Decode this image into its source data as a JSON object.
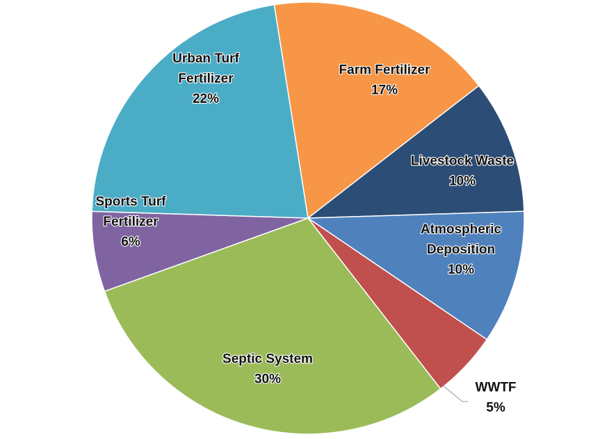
{
  "chart_data": {
    "type": "pie",
    "slices": [
      {
        "label_lines": [
          "Farm Fertilizer"
        ],
        "value": 17,
        "value_label": "17%",
        "color": "#F79646"
      },
      {
        "label_lines": [
          "Livestock Waste"
        ],
        "value": 10,
        "value_label": "10%",
        "color": "#2C4D75"
      },
      {
        "label_lines": [
          "Atmospheric",
          "Deposition"
        ],
        "value": 10,
        "value_label": "10%",
        "color": "#4F81BD"
      },
      {
        "label_lines": [
          "WWTF"
        ],
        "value": 5,
        "value_label": "5%",
        "color": "#C0504D"
      },
      {
        "label_lines": [
          "Septic System"
        ],
        "value": 30,
        "value_label": "30%",
        "color": "#9BBB59"
      },
      {
        "label_lines": [
          "Sports Turf",
          "Fertilizer"
        ],
        "value": 6,
        "value_label": "6%",
        "color": "#8064A2"
      },
      {
        "label_lines": [
          "Urban Turf",
          "Fertilizer"
        ],
        "value": 22,
        "value_label": "22%",
        "color": "#4BACC6"
      }
    ],
    "legend": "none",
    "labels": "inside, bold, with percentages"
  }
}
